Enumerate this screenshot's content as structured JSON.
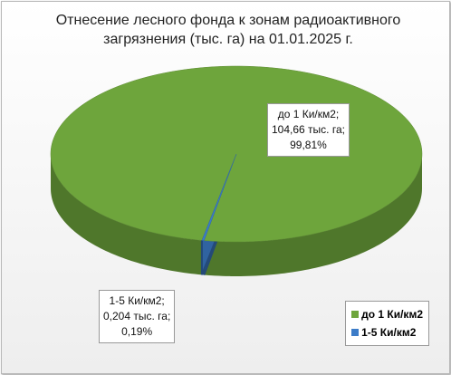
{
  "chart_data": {
    "type": "pie3d",
    "title": "Отнесение лесного фонда к зонам радиоактивного загрязнения  (тыс. га) на 01.01.2025 г.",
    "categories": [
      "до 1 Ки/км2",
      "1-5 Ки/км2"
    ],
    "values": [
      99.81,
      0.19
    ],
    "value_labels": [
      "99,81%",
      "0,19%"
    ],
    "areas": [
      104.66,
      0.204
    ],
    "area_labels": [
      "104,66 тыс. га",
      "0,204 тыс. га"
    ],
    "separator": ";",
    "colors": [
      "#6ea53c",
      "#3c7cc8"
    ],
    "legend": "bottom-right"
  }
}
